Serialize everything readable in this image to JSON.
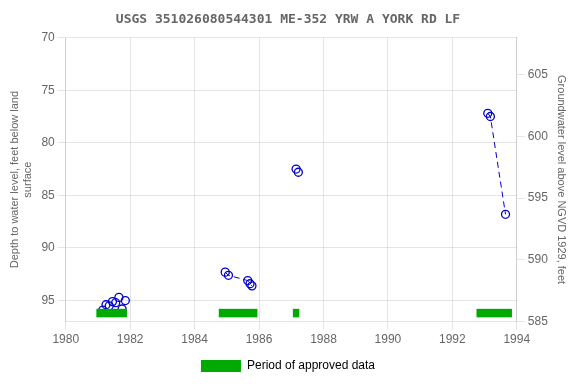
{
  "chart_data": {
    "type": "scatter",
    "title": "USGS 351026080544301 ME-352 YRW A YORK RD LF",
    "ylabel": "Depth to water level, feet below land\nsurface",
    "y2label": "Groundwater level above NGVD 1929, feet",
    "xlim": [
      1980,
      1994
    ],
    "xticks": [
      1980,
      1982,
      1984,
      1986,
      1988,
      1990,
      1992,
      1994
    ],
    "ylim": [
      97,
      70
    ],
    "yticks": [
      70,
      75,
      80,
      85,
      90,
      95
    ],
    "y2lim": [
      585,
      608
    ],
    "y2ticks": [
      585,
      590,
      595,
      600,
      605
    ],
    "grid": true,
    "legend": "bottom",
    "series": [
      {
        "type": "scatter",
        "marker": "open_circle",
        "color": "#0000cc",
        "x": [
          1981.15,
          1981.25,
          1981.35,
          1981.45,
          1981.55,
          1981.65,
          1981.75,
          1981.85,
          1984.95,
          1985.05,
          1985.65,
          1985.72,
          1985.78,
          1987.15,
          1987.22,
          1993.1,
          1993.18,
          1993.65
        ],
        "values": [
          95.9,
          95.4,
          95.5,
          95.1,
          95.2,
          94.7,
          95.8,
          95.0,
          92.3,
          92.6,
          93.1,
          93.4,
          93.6,
          82.5,
          82.8,
          77.2,
          77.5,
          86.8
        ]
      },
      {
        "type": "line",
        "line_style": "dashed",
        "color": "#0000cc",
        "x": [
          1984.95,
          1985.05,
          1985.65,
          1985.72,
          1985.78
        ],
        "values": [
          92.3,
          92.6,
          93.1,
          93.4,
          93.6
        ]
      },
      {
        "type": "line",
        "line_style": "dashed",
        "color": "#0000cc",
        "x": [
          1993.1,
          1993.18,
          1993.65
        ],
        "values": [
          77.2,
          77.5,
          86.8
        ]
      },
      {
        "name": "Period of approved data",
        "type": "bar",
        "color": "#00aa00",
        "x_start": [
          1980.95,
          1984.75,
          1987.05,
          1992.75
        ],
        "x_end": [
          1981.9,
          1985.95,
          1987.25,
          1993.85
        ]
      }
    ]
  }
}
